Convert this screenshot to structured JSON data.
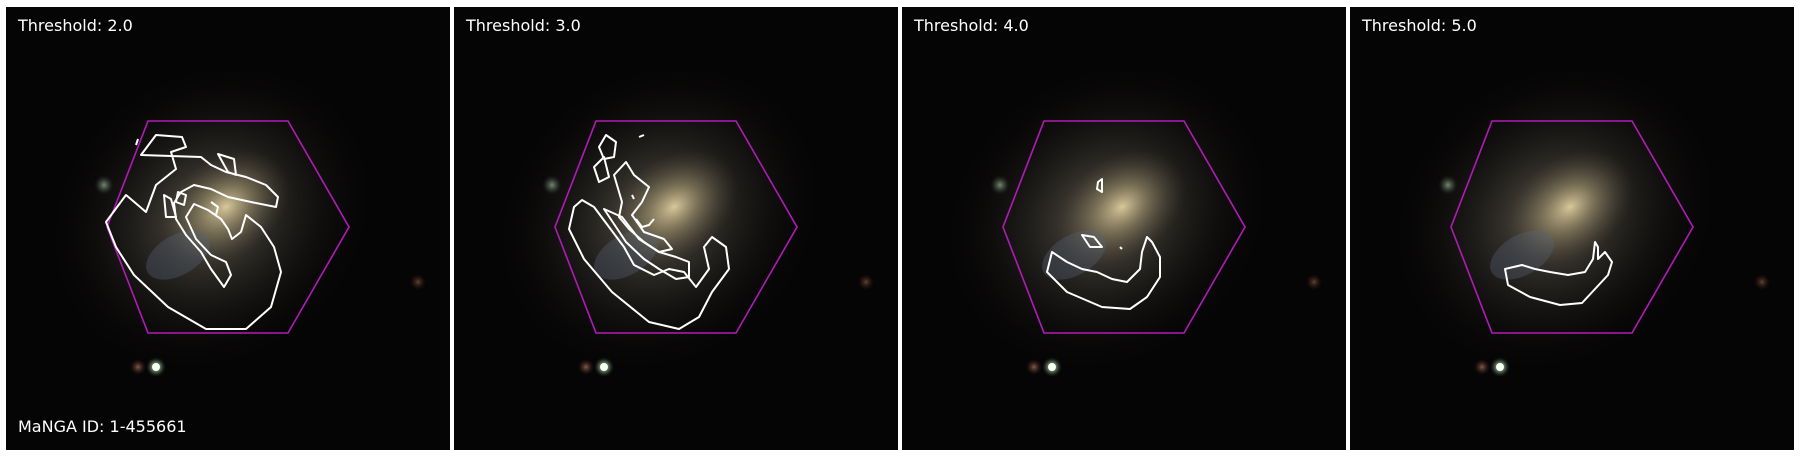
{
  "figure": {
    "manga_id_label": "MaNGA ID: 1-455661",
    "hexagon_color": "#b11ab8",
    "contour_color": "#ffffff",
    "panels": [
      {
        "threshold_label": "Threshold: 2.0"
      },
      {
        "threshold_label": "Threshold: 3.0"
      },
      {
        "threshold_label": "Threshold: 4.0"
      },
      {
        "threshold_label": "Threshold: 5.0"
      }
    ]
  }
}
